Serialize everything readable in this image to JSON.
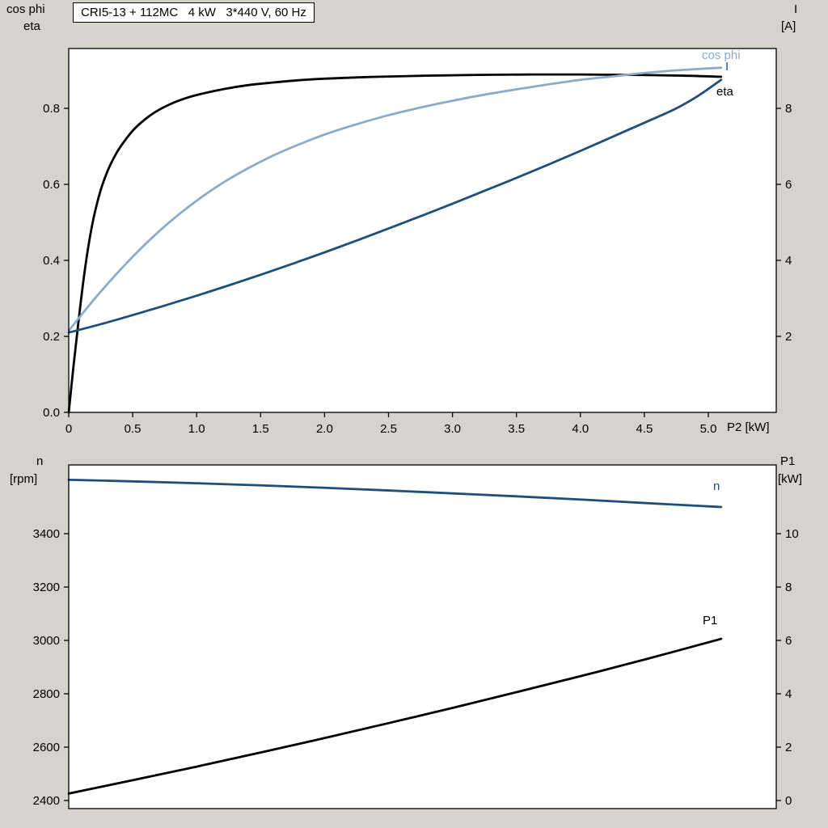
{
  "colors": {
    "black": "#000000",
    "light_blue": "#8aacca",
    "dark_blue": "#1f4e79",
    "background": "#d6d3ce",
    "plot_background": "#ffffff"
  },
  "title_box": "CRI5-13 + 112MC   4 kW   3*440 V, 60 Hz",
  "labels": {
    "axis_top_left_1": "cos phi",
    "axis_top_left_2": "eta",
    "axis_top_right_1": "I",
    "axis_top_right_2": "[A]",
    "x_axis": "P2 [kW]",
    "axis_bot_left_1": "n",
    "axis_bot_left_2": "[rpm]",
    "axis_bot_right_1": "P1",
    "axis_bot_right_2": "[kW]",
    "curve_cos_phi": "cos phi",
    "curve_I": "I",
    "curve_eta": "eta",
    "curve_n": "n",
    "curve_P1": "P1"
  },
  "chart_data": [
    {
      "id": "top",
      "type": "line",
      "title": "CRI5-13 + 112MC   4 kW   3*440 V, 60 Hz",
      "x_axis": {
        "label": "P2 [kW]",
        "min": 0,
        "max": 5.531,
        "ticks": [
          {
            "v": 0,
            "t": "0"
          },
          {
            "v": 0.5,
            "t": "0.5"
          },
          {
            "v": 1,
            "t": "1.0"
          },
          {
            "v": 1.5,
            "t": "1.5"
          },
          {
            "v": 2,
            "t": "2.0"
          },
          {
            "v": 2.5,
            "t": "2.5"
          },
          {
            "v": 3,
            "t": "3.0"
          },
          {
            "v": 3.5,
            "t": "3.5"
          },
          {
            "v": 4,
            "t": "4.0"
          },
          {
            "v": 4.5,
            "t": "4.5"
          },
          {
            "v": 5,
            "t": "5.0"
          }
        ]
      },
      "left_axis": {
        "label": "cos phi / eta",
        "min": 0,
        "max": 0.9574,
        "ticks": [
          {
            "v": 0,
            "t": "0.0"
          },
          {
            "v": 0.2,
            "t": "0.2"
          },
          {
            "v": 0.4,
            "t": "0.4"
          },
          {
            "v": 0.6,
            "t": "0.6"
          },
          {
            "v": 0.8,
            "t": "0.8"
          }
        ]
      },
      "right_axis": {
        "label": "I [A]",
        "min": 0,
        "max": 9.574,
        "ticks": [
          {
            "v": 2,
            "t": "2"
          },
          {
            "v": 4,
            "t": "4"
          },
          {
            "v": 6,
            "t": "6"
          },
          {
            "v": 8,
            "t": "8"
          }
        ]
      },
      "series": [
        {
          "name": "eta",
          "color": "#000000",
          "axis": "left",
          "points": [
            [
              0,
              0
            ],
            [
              0.04,
              0.13
            ],
            [
              0.08,
              0.25
            ],
            [
              0.12,
              0.36
            ],
            [
              0.16,
              0.45
            ],
            [
              0.2,
              0.52
            ],
            [
              0.25,
              0.585
            ],
            [
              0.3,
              0.632
            ],
            [
              0.35,
              0.668
            ],
            [
              0.4,
              0.697
            ],
            [
              0.5,
              0.741
            ],
            [
              0.6,
              0.772
            ],
            [
              0.7,
              0.795
            ],
            [
              0.8,
              0.812
            ],
            [
              0.9,
              0.825
            ],
            [
              1.0,
              0.835
            ],
            [
              1.2,
              0.85
            ],
            [
              1.4,
              0.861
            ],
            [
              1.6,
              0.868
            ],
            [
              1.8,
              0.874
            ],
            [
              2.0,
              0.878
            ],
            [
              2.4,
              0.883
            ],
            [
              2.8,
              0.886
            ],
            [
              3.2,
              0.888
            ],
            [
              3.6,
              0.889
            ],
            [
              4.0,
              0.889
            ],
            [
              4.4,
              0.888
            ],
            [
              4.8,
              0.886
            ],
            [
              5.1,
              0.883
            ]
          ]
        },
        {
          "name": "cos phi",
          "color": "#8aacca",
          "axis": "left",
          "points": [
            [
              0,
              0.215
            ],
            [
              0.2,
              0.298
            ],
            [
              0.4,
              0.374
            ],
            [
              0.6,
              0.443
            ],
            [
              0.8,
              0.504
            ],
            [
              1.0,
              0.557
            ],
            [
              1.2,
              0.603
            ],
            [
              1.4,
              0.642
            ],
            [
              1.6,
              0.676
            ],
            [
              1.8,
              0.705
            ],
            [
              2.0,
              0.731
            ],
            [
              2.25,
              0.758
            ],
            [
              2.5,
              0.782
            ],
            [
              2.75,
              0.802
            ],
            [
              3.0,
              0.82
            ],
            [
              3.25,
              0.836
            ],
            [
              3.5,
              0.85
            ],
            [
              3.75,
              0.863
            ],
            [
              4.0,
              0.875
            ],
            [
              4.25,
              0.884
            ],
            [
              4.5,
              0.893
            ],
            [
              4.75,
              0.9
            ],
            [
              5.1,
              0.907
            ]
          ]
        },
        {
          "name": "I",
          "color": "#1f4e79",
          "axis": "right",
          "points": [
            [
              0,
              2.1
            ],
            [
              0.25,
              2.32
            ],
            [
              0.5,
              2.56
            ],
            [
              0.75,
              2.81
            ],
            [
              1.0,
              3.07
            ],
            [
              1.25,
              3.34
            ],
            [
              1.5,
              3.62
            ],
            [
              1.75,
              3.91
            ],
            [
              2.0,
              4.21
            ],
            [
              2.25,
              4.52
            ],
            [
              2.5,
              4.84
            ],
            [
              2.75,
              5.16
            ],
            [
              3.0,
              5.49
            ],
            [
              3.25,
              5.83
            ],
            [
              3.5,
              6.17
            ],
            [
              3.75,
              6.52
            ],
            [
              4.0,
              6.88
            ],
            [
              4.25,
              7.25
            ],
            [
              4.5,
              7.62
            ],
            [
              4.75,
              8.0
            ],
            [
              4.93,
              8.35
            ],
            [
              5.1,
              8.75
            ]
          ]
        }
      ]
    },
    {
      "id": "bottom",
      "type": "line",
      "title": "",
      "x_axis": {
        "label": "",
        "min": 0,
        "max": 5.531,
        "ticks": []
      },
      "left_axis": {
        "label": "n [rpm]",
        "min": 2369.7,
        "max": 3657.6,
        "ticks": [
          {
            "v": 2400,
            "t": "2400"
          },
          {
            "v": 2600,
            "t": "2600"
          },
          {
            "v": 2800,
            "t": "2800"
          },
          {
            "v": 3000,
            "t": "3000"
          },
          {
            "v": 3200,
            "t": "3200"
          },
          {
            "v": 3400,
            "t": "3400"
          }
        ]
      },
      "right_axis": {
        "label": "P1 [kW]",
        "min": -0.303,
        "max": 12.576,
        "ticks": [
          {
            "v": 0,
            "t": "0"
          },
          {
            "v": 2,
            "t": "2"
          },
          {
            "v": 4,
            "t": "4"
          },
          {
            "v": 6,
            "t": "6"
          },
          {
            "v": 8,
            "t": "8"
          },
          {
            "v": 10,
            "t": "10"
          }
        ]
      },
      "series": [
        {
          "name": "n",
          "color": "#1f4e79",
          "axis": "left",
          "points": [
            [
              0,
              3602
            ],
            [
              0.5,
              3596
            ],
            [
              1.0,
              3589
            ],
            [
              1.5,
              3581
            ],
            [
              2.0,
              3572
            ],
            [
              2.5,
              3562
            ],
            [
              3.0,
              3551
            ],
            [
              3.5,
              3540
            ],
            [
              4.0,
              3528
            ],
            [
              4.5,
              3515
            ],
            [
              5.1,
              3500
            ]
          ]
        },
        {
          "name": "P1",
          "color": "#000000",
          "axis": "right",
          "points": [
            [
              0,
              0.26
            ],
            [
              0.5,
              0.76
            ],
            [
              1.0,
              1.27
            ],
            [
              1.5,
              1.8
            ],
            [
              2.0,
              2.34
            ],
            [
              2.5,
              2.9
            ],
            [
              3.0,
              3.47
            ],
            [
              3.5,
              4.06
            ],
            [
              4.0,
              4.66
            ],
            [
              4.5,
              5.28
            ],
            [
              5.1,
              6.06
            ]
          ]
        }
      ]
    }
  ]
}
